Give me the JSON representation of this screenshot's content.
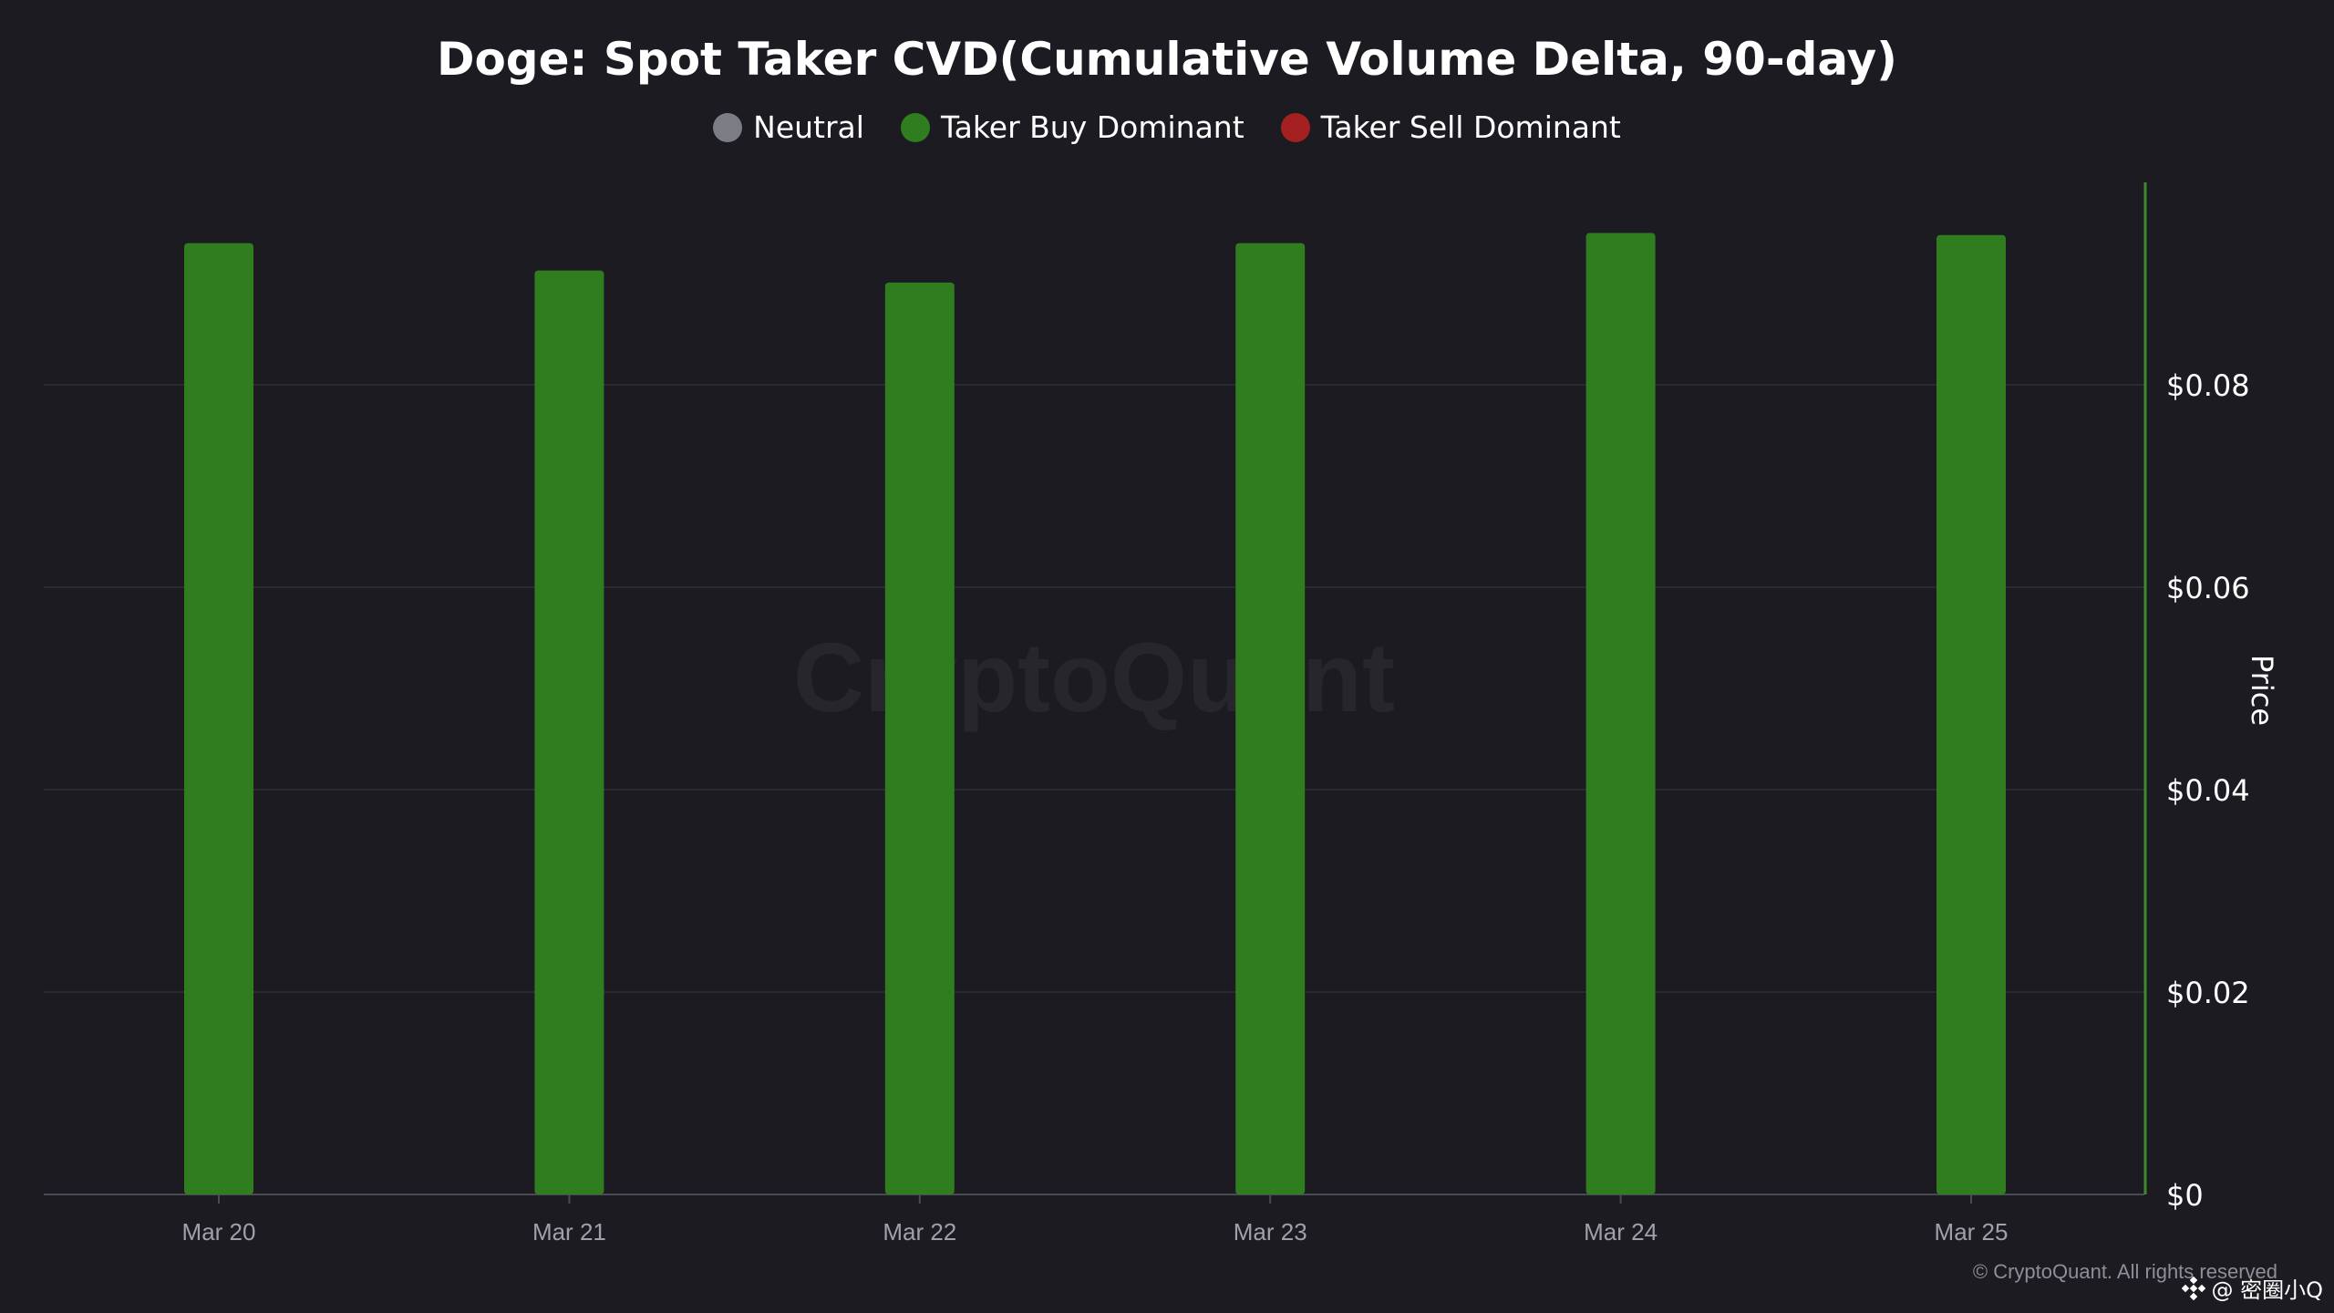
{
  "colors": {
    "background": "#1b1b21",
    "neutral": "#7c7c84",
    "buy": "#2f7d1f",
    "sell": "#a52020",
    "price_axis": "#3f8a2a",
    "grid": "#2a2a31",
    "watermark": "#26262c"
  },
  "watermark": "CryptoQuant",
  "copyright": "© CryptoQuant. All rights reserved",
  "overlay_tag": {
    "icon": "binance-logo-icon",
    "text": "@ 密圈小Q"
  },
  "chart_data": {
    "type": "bar",
    "title": "Doge: Spot Taker CVD(Cumulative Volume Delta, 90-day)",
    "legend": [
      {
        "name": "Neutral",
        "color": "#7c7c84"
      },
      {
        "name": "Taker Buy Dominant",
        "color": "#2f7d1f"
      },
      {
        "name": "Taker Sell Dominant",
        "color": "#a52020"
      }
    ],
    "legend_position": "top-center",
    "categories": [
      "Mar 20",
      "Mar 21",
      "Mar 22",
      "Mar 23",
      "Mar 24",
      "Mar 25"
    ],
    "series": [
      {
        "name": "Taker Buy Dominant",
        "values": [
          0.094,
          0.0913,
          0.0901,
          0.094,
          0.095,
          0.0948
        ]
      }
    ],
    "right_axis": {
      "label": "Price",
      "ylim": [
        0,
        0.1
      ],
      "ticks": [
        0,
        0.02,
        0.04,
        0.06,
        0.08
      ],
      "tick_labels": [
        "$0",
        "$0.02",
        "$0.04",
        "$0.06",
        "$0.08"
      ]
    },
    "grid": true
  }
}
